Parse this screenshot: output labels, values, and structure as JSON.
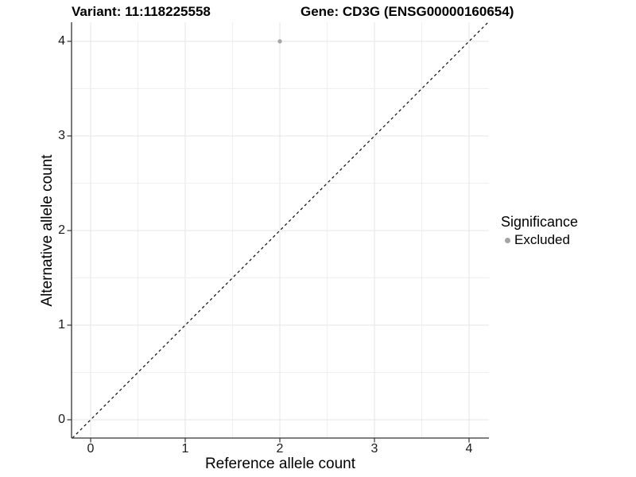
{
  "chart_data": {
    "type": "scatter",
    "title_left": "Variant: 11:118225558",
    "title_right": "Gene: CD3G (ENSG00000160654)",
    "xlabel": "Reference allele count",
    "ylabel": "Alternative allele count",
    "xlim": [
      -0.2,
      4.2
    ],
    "ylim": [
      -0.2,
      4.2
    ],
    "x_ticks": [
      0,
      1,
      2,
      3,
      4
    ],
    "y_ticks": [
      0,
      1,
      2,
      3,
      4
    ],
    "grid": {
      "minor_every": 0.5,
      "major_color": "#e6e6e6",
      "minor_color": "#efefef"
    },
    "points": [
      {
        "x": 2,
        "y": 4,
        "significance": "Excluded",
        "color": "#a8a8a8",
        "radius": 2.7
      }
    ],
    "identity_line": {
      "equation": "y = x",
      "style": "dashed",
      "color": "#000000"
    },
    "legend": {
      "title": "Significance",
      "position": "right",
      "items": [
        {
          "label": "Excluded",
          "marker": "circle",
          "color": "#a3a3a3"
        }
      ]
    }
  },
  "colors": {
    "background": "#ffffff",
    "axis_line": "#333333",
    "tick_text": "#1a1a1a",
    "title_text": "#000000"
  }
}
